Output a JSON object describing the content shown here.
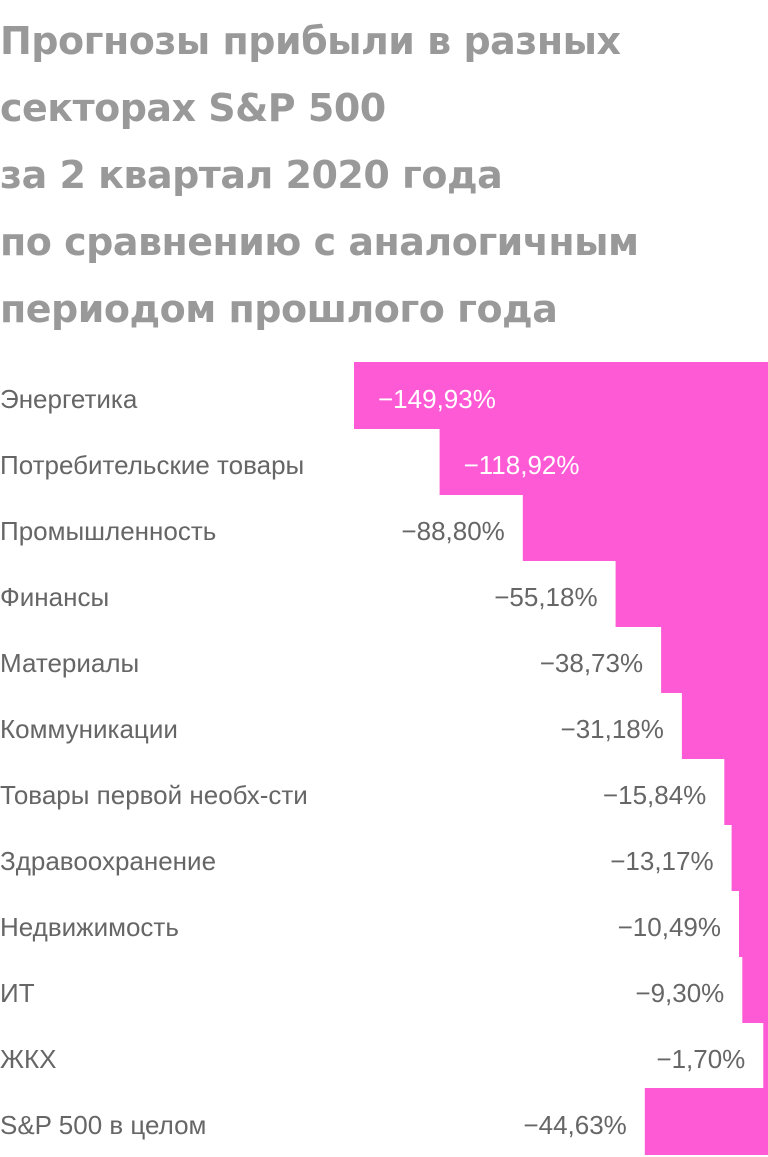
{
  "chart_data": {
    "type": "bar",
    "orientation": "horizontal",
    "title": "Прогнозы прибыли в разных\nсекторах S&P 500\nза 2 квартал 2020 года\nпо сравнению с аналогичным\nпериодом прошлого года",
    "xlabel": "",
    "ylabel": "",
    "grid": false,
    "legend": "none",
    "bar_color": "#ff5ad6",
    "categories": [
      "Энергетика",
      "Потребительские товары",
      "Промышленность",
      "Финансы",
      "Материалы",
      "Коммуникации",
      "Товары первой необх-сти",
      "Здравоохранение",
      "Недвижимость",
      "ИТ",
      "ЖКХ",
      "S&P 500 в целом"
    ],
    "values": [
      -149.93,
      -118.92,
      -88.8,
      -55.18,
      -38.73,
      -31.18,
      -15.84,
      -13.17,
      -10.49,
      -9.3,
      -1.7,
      -44.63
    ],
    "value_labels": [
      "−149,93%",
      "−118,92%",
      "−88,80%",
      "−55,18%",
      "−38,73%",
      "−31,18%",
      "−15,84%",
      "−13,17%",
      "−10,49%",
      "−9,30%",
      "−1,70%",
      "−44,63%"
    ],
    "xlim": [
      -160,
      0
    ]
  }
}
